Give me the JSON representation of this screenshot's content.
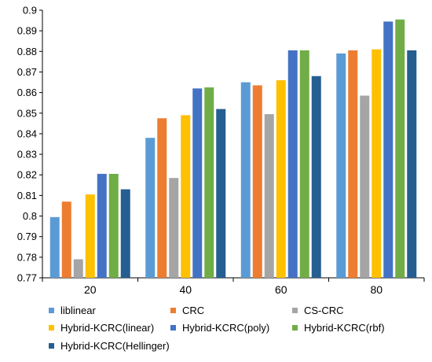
{
  "chart_data": {
    "type": "bar",
    "title": "",
    "xlabel": "",
    "ylabel": "",
    "categories": [
      "20",
      "40",
      "60",
      "80"
    ],
    "ylim": [
      0.77,
      0.9
    ],
    "yticks": [
      "0.77",
      "0.78",
      "0.79",
      "0.8",
      "0.81",
      "0.82",
      "0.83",
      "0.84",
      "0.85",
      "0.86",
      "0.87",
      "0.88",
      "0.89",
      "0.9"
    ],
    "grid": false,
    "legend_position": "bottom",
    "series": [
      {
        "name": "liblinear",
        "color": "#5B9BD5",
        "values": [
          0.7995,
          0.838,
          0.865,
          0.879
        ]
      },
      {
        "name": "CRC",
        "color": "#ED7D31",
        "values": [
          0.807,
          0.8475,
          0.8635,
          0.8805
        ]
      },
      {
        "name": "CS-CRC",
        "color": "#A5A5A5",
        "values": [
          0.779,
          0.8185,
          0.8495,
          0.8585
        ]
      },
      {
        "name": "Hybrid-KCRC(linear)",
        "color": "#FFC000",
        "values": [
          0.8105,
          0.849,
          0.866,
          0.881
        ]
      },
      {
        "name": "Hybrid-KCRC(poly)",
        "color": "#4472C4",
        "values": [
          0.8205,
          0.862,
          0.8805,
          0.8945
        ]
      },
      {
        "name": "Hybrid-KCRC(rbf)",
        "color": "#70AD47",
        "values": [
          0.8205,
          0.8625,
          0.8805,
          0.8955
        ]
      },
      {
        "name": "Hybrid-KCRC(Hellinger)",
        "color": "#255E91",
        "values": [
          0.813,
          0.852,
          0.868,
          0.8805
        ]
      }
    ]
  }
}
